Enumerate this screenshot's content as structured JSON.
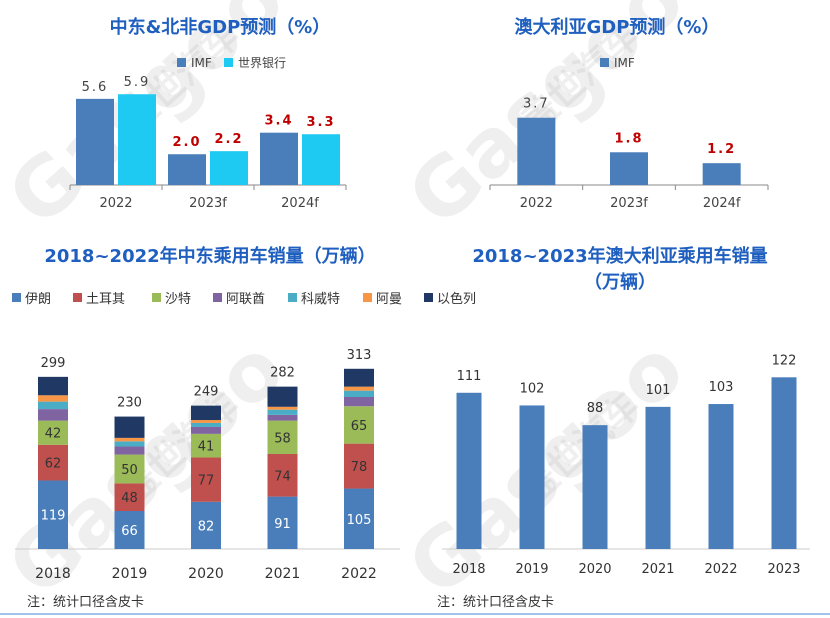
{
  "colors": {
    "title": "#1f5fbf",
    "imf": "#4a7ebb",
    "worldbank": "#1fcaf2",
    "red_label": "#c00000",
    "iran": "#4a7ebb",
    "turkey": "#c0504d",
    "saudi": "#9bbb59",
    "uae": "#8064a2",
    "kuwait": "#4bacc6",
    "oman": "#f79646",
    "israel": "#1f3864",
    "axis": "#888888",
    "note_line": "#9fc5e8"
  },
  "watermark": {
    "text": "Gasgoo",
    "brand": "盖世汽车"
  },
  "note": "注：统计口径含皮卡",
  "chart_data": [
    {
      "id": "mena-gdp",
      "type": "bar",
      "title": "中东&北非GDP预测（%）",
      "categories": [
        "2022",
        "2023f",
        "2024f"
      ],
      "series": [
        {
          "name": "IMF",
          "values": [
            5.6,
            2.0,
            3.4
          ],
          "labels": [
            "5.6",
            "2.0",
            "3.4"
          ]
        },
        {
          "name": "世界银行",
          "values": [
            5.9,
            2.2,
            3.3
          ],
          "labels": [
            "5.9",
            "2.2",
            "3.3"
          ]
        }
      ],
      "ylim": [
        0,
        6.5
      ]
    },
    {
      "id": "au-gdp",
      "type": "bar",
      "title": "澳大利亚GDP预测（%）",
      "categories": [
        "2022",
        "2023f",
        "2024f"
      ],
      "series": [
        {
          "name": "IMF",
          "values": [
            3.7,
            1.8,
            1.2
          ],
          "labels": [
            "3.7",
            "1.8",
            "1.2"
          ]
        }
      ],
      "ylim": [
        0,
        5.5
      ]
    },
    {
      "id": "me-sales",
      "type": "bar",
      "stacked": true,
      "title": "2018~2022年中东乘用车销量（万辆）",
      "categories": [
        "2018",
        "2019",
        "2020",
        "2021",
        "2022"
      ],
      "totals": [
        299,
        230,
        249,
        282,
        313
      ],
      "series": [
        {
          "name": "伊朗",
          "key": "iran",
          "values": [
            119,
            66,
            82,
            91,
            105
          ]
        },
        {
          "name": "土耳其",
          "key": "turkey",
          "values": [
            62,
            48,
            77,
            74,
            78
          ]
        },
        {
          "name": "沙特",
          "key": "saudi",
          "values": [
            42,
            50,
            41,
            58,
            65
          ]
        },
        {
          "name": "阿联酋",
          "key": "uae",
          "values": [
            20,
            14,
            12,
            10,
            16
          ]
        },
        {
          "name": "科威特",
          "key": "kuwait",
          "values": [
            13,
            9,
            7,
            9,
            11
          ]
        },
        {
          "name": "阿曼",
          "key": "oman",
          "values": [
            11,
            6,
            5,
            5,
            7
          ]
        },
        {
          "name": "以色列",
          "key": "israel",
          "values": [
            32,
            37,
            25,
            35,
            31
          ]
        }
      ],
      "ylim": [
        0,
        330
      ]
    },
    {
      "id": "au-sales",
      "type": "bar",
      "title": "2018~2023年澳大利亚乘用车销量（万辆）",
      "title_lines": [
        "2018~2023年澳大利亚乘用车销量",
        "（万辆）"
      ],
      "categories": [
        "2018",
        "2019",
        "2020",
        "2021",
        "2022",
        "2023"
      ],
      "values": [
        111,
        102,
        88,
        101,
        103,
        122
      ],
      "ylim": [
        0,
        135
      ]
    }
  ]
}
